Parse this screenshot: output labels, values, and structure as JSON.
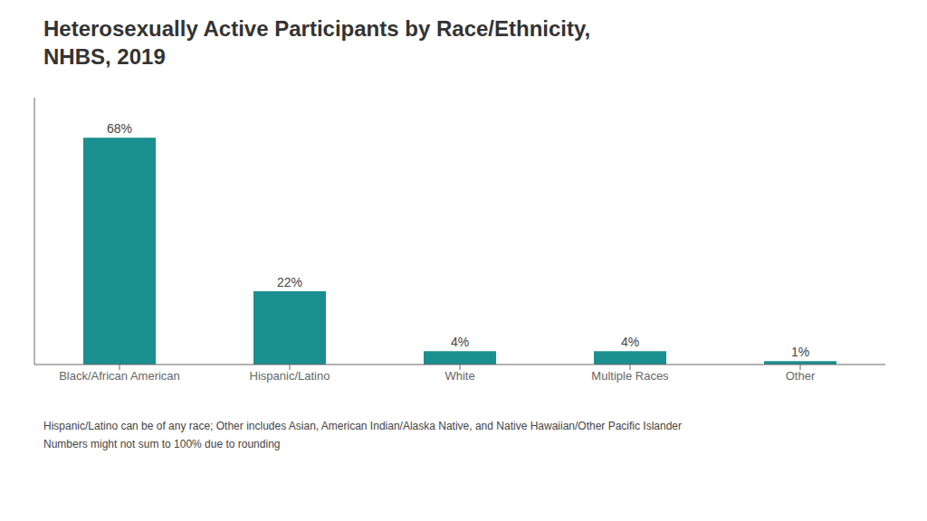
{
  "chart_data": {
    "type": "bar",
    "title": "Heterosexually Active Participants by Race/Ethnicity,\nNHBS, 2019",
    "categories": [
      "Black/African American",
      "Hispanic/Latino",
      "White",
      "Multiple Races",
      "Other"
    ],
    "values": [
      68,
      22,
      4,
      4,
      1
    ],
    "value_labels": [
      "68%",
      "22%",
      "4%",
      "4%",
      "1%"
    ],
    "data_labels": true,
    "color": "#1a8f8f",
    "ylim": [
      0,
      80
    ],
    "tick_labels": "x",
    "grid": false,
    "annotations": [
      "Hispanic/Latino can be of any race; Other includes Asian, American Indian/Alaska Native, and Native Hawaiian/Other Pacific Islander",
      "Numbers might not sum to 100% due to rounding"
    ]
  }
}
